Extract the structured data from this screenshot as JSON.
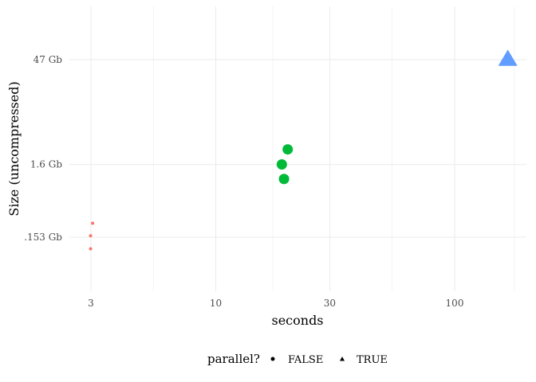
{
  "chart_data": {
    "type": "scatter",
    "title": "",
    "xlabel": "seconds",
    "ylabel": "Size (uncompressed)",
    "x_scale": "log10",
    "y_scale": "log",
    "xlim": [
      2.7,
      190
    ],
    "x_ticks": [
      {
        "value": 3,
        "label": "3"
      },
      {
        "value": 10,
        "label": "10"
      },
      {
        "value": 30,
        "label": "30"
      },
      {
        "value": 100,
        "label": "100"
      }
    ],
    "y_ticks": [
      {
        "value_gb": 0.153,
        "label": ".153 Gb"
      },
      {
        "value_gb": 1.6,
        "label": "1.6 Gb"
      },
      {
        "value_gb": 47,
        "label": "47 Gb"
      }
    ],
    "grid": true,
    "legend": {
      "title": "parallel?",
      "position": "bottom",
      "entries": [
        {
          "label": "FALSE",
          "shape": "circle"
        },
        {
          "label": "TRUE",
          "shape": "triangle"
        }
      ]
    },
    "series": [
      {
        "parallel": "FALSE",
        "shape": "circle",
        "color": "#F8766D",
        "size": "small",
        "points": [
          {
            "x": 3.05,
            "y_gb": 0.24
          },
          {
            "x": 2.99,
            "y_gb": 0.16
          },
          {
            "x": 2.99,
            "y_gb": 0.105
          }
        ]
      },
      {
        "parallel": "FALSE",
        "shape": "circle",
        "color": "#00BA38",
        "size": "medium",
        "points": [
          {
            "x": 20.0,
            "y_gb": 2.6
          },
          {
            "x": 18.9,
            "y_gb": 1.6
          },
          {
            "x": 19.3,
            "y_gb": 1.0
          }
        ]
      },
      {
        "parallel": "TRUE",
        "shape": "triangle",
        "color": "#619CFF",
        "size": "large",
        "points": [
          {
            "x": 167,
            "y_gb": 47
          }
        ]
      }
    ]
  }
}
